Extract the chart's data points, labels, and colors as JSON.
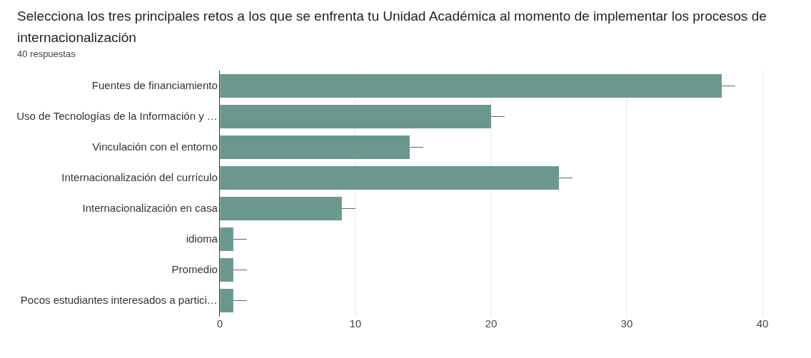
{
  "chart_data": {
    "type": "bar",
    "orientation": "horizontal",
    "title": "Selecciona los tres principales retos a los que se enfrenta tu Unidad Académica al momento de implementar los procesos de internacionalización",
    "subtitle": "40 respuestas",
    "categories": [
      "Fuentes de financiamiento",
      "Uso de Tecnologías de la Información y …",
      "Vinculación con el entorno",
      "Internacionalización del currículo",
      "Internacionalización en casa",
      "idioma",
      "Promedio",
      "Pocos estudiantes interesados a partici…"
    ],
    "values": [
      37,
      20,
      14,
      25,
      9,
      1,
      1,
      1
    ],
    "errors": [
      [
        37,
        38
      ],
      [
        20,
        21
      ],
      [
        14,
        15
      ],
      [
        25,
        26
      ],
      [
        9,
        10
      ],
      [
        1,
        2
      ],
      [
        1,
        2
      ],
      [
        1,
        2
      ]
    ],
    "color": "#6a988e",
    "xlim": [
      0,
      40
    ],
    "xticks": [
      0,
      10,
      20,
      30,
      40
    ],
    "grid": "x",
    "legend": false
  }
}
